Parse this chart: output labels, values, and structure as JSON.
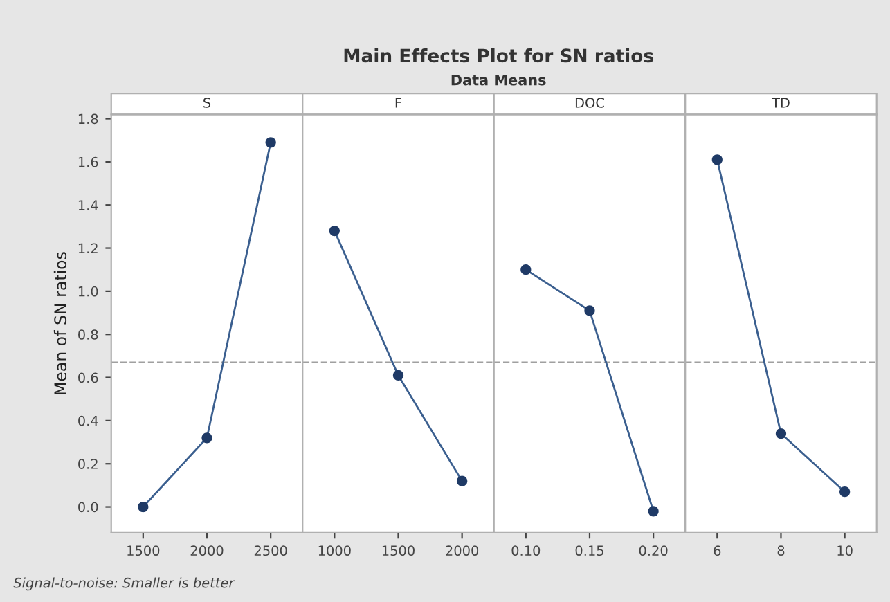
{
  "chart_data": [
    {
      "type": "line",
      "title": "S",
      "ylabel": "Mean of SN ratios",
      "annotations": [
        "Main Effects Plot for SN ratios",
        "Data Means",
        "Signal-to-noise: Smaller is better"
      ],
      "categories": [
        "1500",
        "2000",
        "2500"
      ],
      "series": [
        {
          "color": "#3b5f8f",
          "values": [
            0.0,
            0.32,
            1.69
          ]
        }
      ],
      "ylim": [
        -0.12,
        1.82
      ],
      "yticks": [
        {
          "value": 0,
          "label": "0.0"
        },
        0.2,
        0.4,
        0.6,
        0.8,
        {
          "value": 1,
          "label": "1.0"
        },
        1.2,
        1.4,
        1.6,
        1.8
      ],
      "ref_lines": [
        {
          "axis": "y",
          "value": 0.67,
          "color": "#a0a0a0",
          "line_style": "dashed"
        }
      ],
      "marker": "circle",
      "line_style": "solid",
      "grid": false
    },
    {
      "type": "line",
      "title": "F",
      "categories": [
        "1000",
        "1500",
        "2000"
      ],
      "series": [
        {
          "color": "#3b5f8f",
          "values": [
            1.28,
            0.61,
            0.12
          ]
        }
      ],
      "ylim": [
        -0.12,
        1.82
      ],
      "tick_labels": "x",
      "ref_lines": [
        {
          "axis": "y",
          "value": 0.67,
          "color": "#a0a0a0",
          "line_style": "dashed"
        }
      ],
      "marker": "circle",
      "line_style": "solid",
      "grid": false
    },
    {
      "type": "line",
      "title": "DOC",
      "categories": [
        "0.10",
        "0.15",
        "0.20"
      ],
      "series": [
        {
          "color": "#3b5f8f",
          "values": [
            1.1,
            0.91,
            -0.02
          ]
        }
      ],
      "ylim": [
        -0.12,
        1.82
      ],
      "tick_labels": "x",
      "ref_lines": [
        {
          "axis": "y",
          "value": 0.67,
          "color": "#a0a0a0",
          "line_style": "dashed"
        }
      ],
      "marker": "circle",
      "line_style": "solid",
      "grid": false
    },
    {
      "type": "line",
      "title": "TD",
      "categories": [
        "6",
        "8",
        "10"
      ],
      "series": [
        {
          "color": "#3b5f8f",
          "values": [
            1.61,
            0.34,
            0.07
          ]
        }
      ],
      "ylim": [
        -0.12,
        1.82
      ],
      "tick_labels": "x",
      "ref_lines": [
        {
          "axis": "y",
          "value": 0.67,
          "color": "#a0a0a0",
          "line_style": "dashed"
        }
      ],
      "marker": "circle",
      "line_style": "solid",
      "grid": false
    }
  ]
}
